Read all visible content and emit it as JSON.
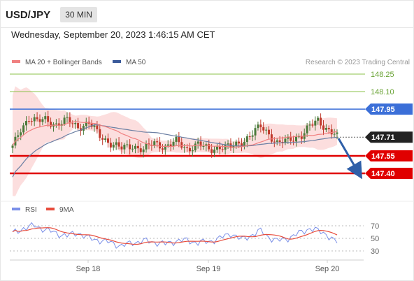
{
  "header": {
    "pair": "USD/JPY",
    "timeframe": "30 MIN",
    "datetime": "Wednesday, September 20, 2023 1:46:15 AM CET"
  },
  "legend": {
    "ma20_bb": "MA 20 + Bollinger Bands",
    "ma50": "MA 50",
    "credit": "Research © 2023 Trading Central",
    "rsi": "RSI",
    "rsi_ma": "9MA"
  },
  "colors": {
    "ma20": "#f08080",
    "bands": "#fbd0d0",
    "ma50": "#6b7fa3",
    "up_candle": "#4a7a3a",
    "down_candle": "#c0392b",
    "resistance_green": "#8bc34a",
    "blue_level": "#3b6fd8",
    "red_level": "#e00000",
    "current": "#222222",
    "arrow": "#2f5fa8",
    "rsi": "#7a8fe8",
    "rsi_ma": "#e74c3c"
  },
  "chart_data": [
    {
      "type": "candlestick",
      "x_labels": [
        "Sep 18",
        "Sep 19",
        "Sep 20"
      ],
      "y_range": [
        147.26,
        148.39
      ],
      "current_price": 147.71,
      "levels": [
        {
          "value": 148.25,
          "label": "148.25",
          "kind": "resistance"
        },
        {
          "value": 148.1,
          "label": "148.10",
          "kind": "resistance"
        },
        {
          "value": 147.95,
          "label": "147.95",
          "kind": "pivot"
        },
        {
          "value": 147.71,
          "label": "147.71",
          "kind": "current"
        },
        {
          "value": 147.55,
          "label": "147.55",
          "kind": "support"
        },
        {
          "value": 147.4,
          "label": "147.40",
          "kind": "support"
        }
      ],
      "close_anchors": [
        [
          0,
          147.62
        ],
        [
          3,
          147.78
        ],
        [
          6,
          147.88
        ],
        [
          9,
          147.84
        ],
        [
          12,
          147.86
        ],
        [
          16,
          147.82
        ],
        [
          20,
          147.85
        ],
        [
          24,
          147.8
        ],
        [
          28,
          147.83
        ],
        [
          32,
          147.72
        ],
        [
          36,
          147.66
        ],
        [
          40,
          147.61
        ],
        [
          44,
          147.64
        ],
        [
          48,
          147.6
        ],
        [
          52,
          147.66
        ],
        [
          56,
          147.63
        ],
        [
          60,
          147.67
        ],
        [
          64,
          147.61
        ],
        [
          68,
          147.65
        ],
        [
          72,
          147.6
        ],
        [
          76,
          147.63
        ],
        [
          80,
          147.62
        ],
        [
          84,
          147.67
        ],
        [
          88,
          147.74
        ],
        [
          91,
          147.8
        ],
        [
          94,
          147.74
        ],
        [
          97,
          147.66
        ],
        [
          100,
          147.67
        ],
        [
          103,
          147.7
        ],
        [
          106,
          147.73
        ],
        [
          109,
          147.8
        ],
        [
          112,
          147.85
        ],
        [
          115,
          147.79
        ],
        [
          118,
          147.74
        ],
        [
          119,
          147.71
        ]
      ]
    },
    {
      "type": "line",
      "name": "RSI",
      "y_ticks": [
        70,
        50,
        30
      ],
      "y_range": [
        22,
        80
      ],
      "rsi_anchors": [
        [
          0,
          58
        ],
        [
          4,
          66
        ],
        [
          8,
          70
        ],
        [
          12,
          64
        ],
        [
          16,
          58
        ],
        [
          20,
          54
        ],
        [
          24,
          59
        ],
        [
          28,
          50
        ],
        [
          32,
          47
        ],
        [
          36,
          43
        ],
        [
          40,
          38
        ],
        [
          44,
          43
        ],
        [
          48,
          46
        ],
        [
          52,
          44
        ],
        [
          56,
          41
        ],
        [
          60,
          46
        ],
        [
          64,
          47
        ],
        [
          68,
          43
        ],
        [
          72,
          45
        ],
        [
          76,
          50
        ],
        [
          80,
          58
        ],
        [
          84,
          48
        ],
        [
          88,
          56
        ],
        [
          91,
          62
        ],
        [
          94,
          52
        ],
        [
          97,
          46
        ],
        [
          100,
          49
        ],
        [
          103,
          54
        ],
        [
          106,
          60
        ],
        [
          109,
          66
        ],
        [
          112,
          62
        ],
        [
          115,
          57
        ],
        [
          118,
          46
        ],
        [
          119,
          44
        ]
      ]
    }
  ]
}
